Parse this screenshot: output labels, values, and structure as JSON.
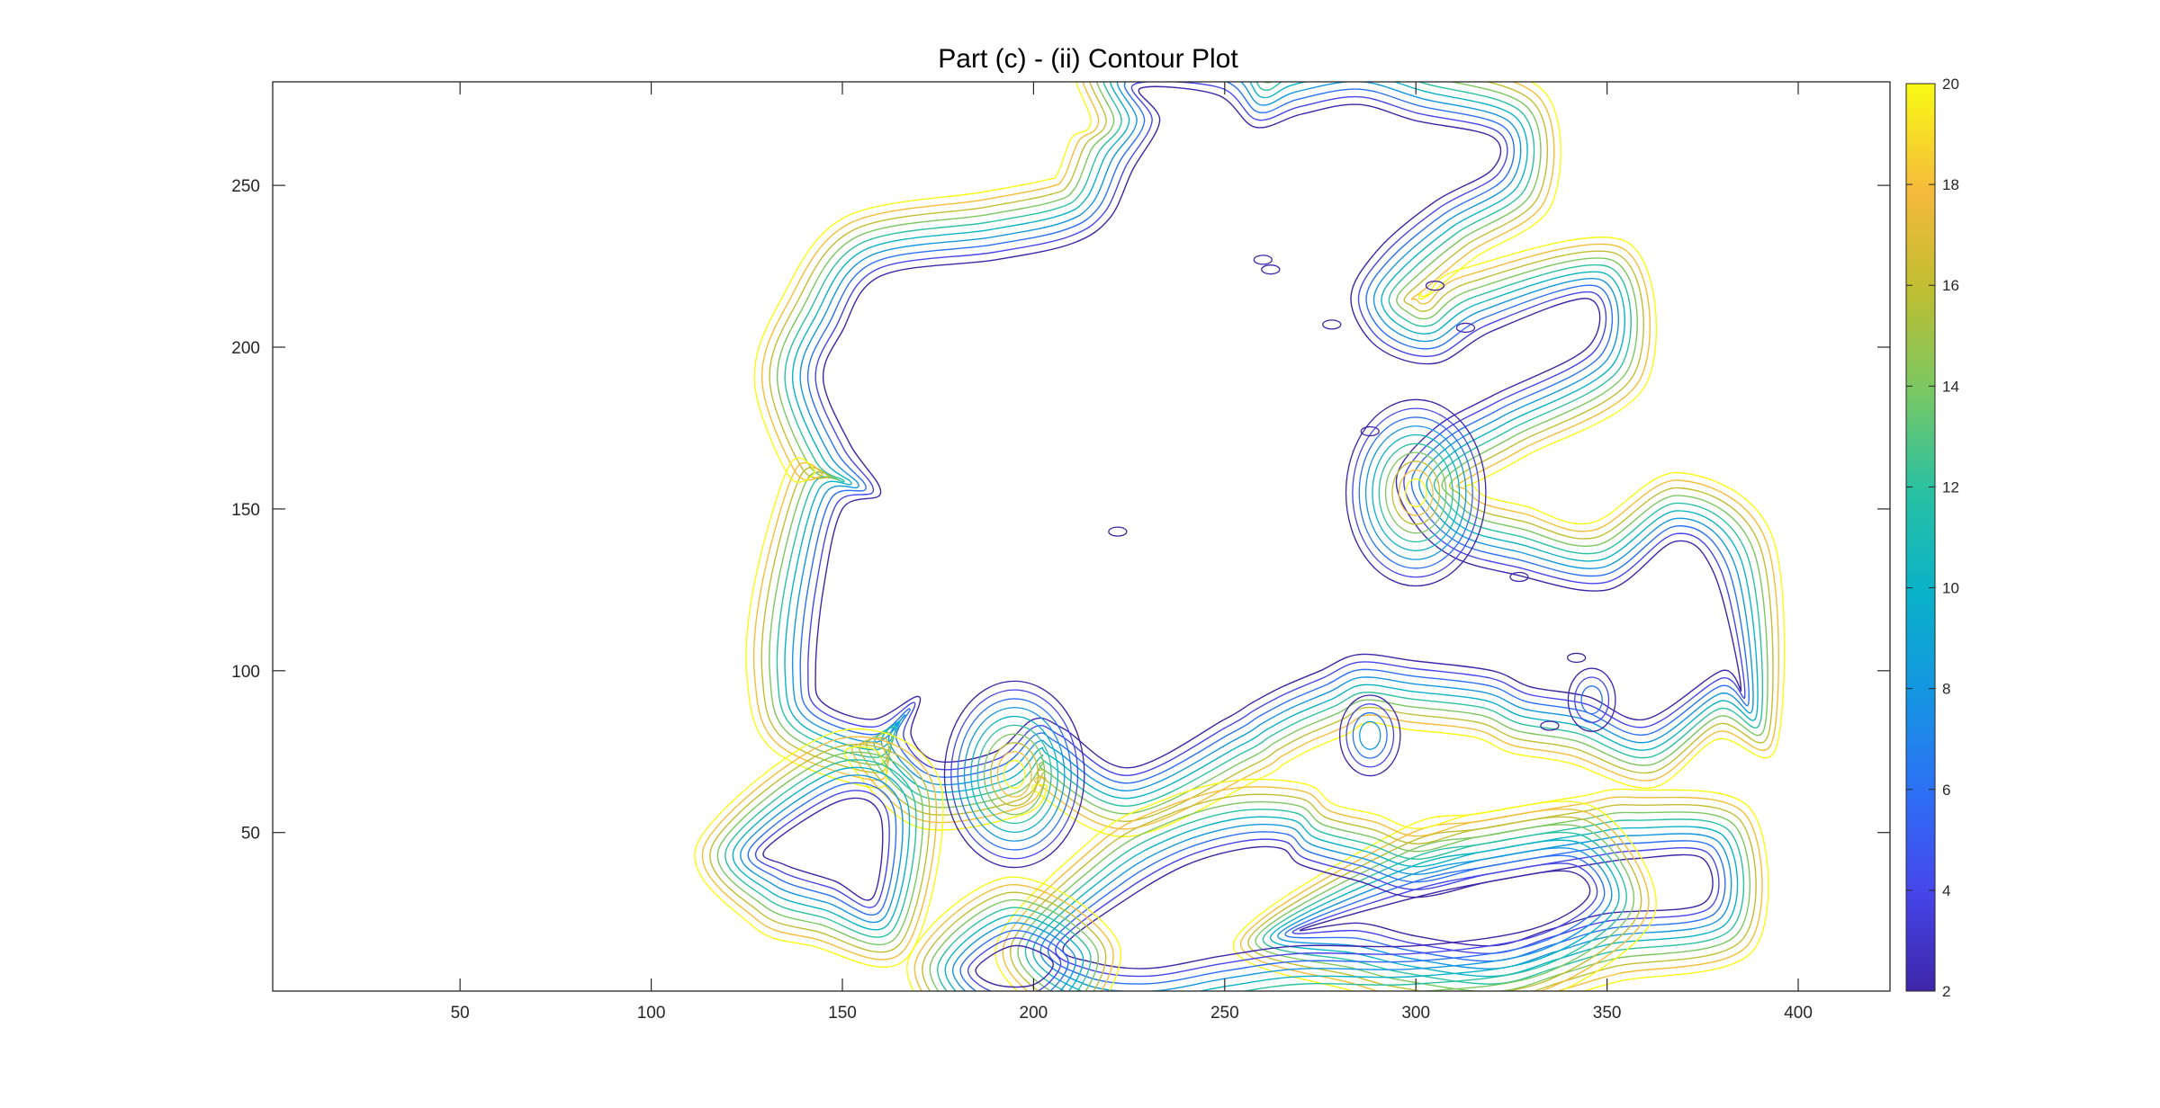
{
  "chart_data": {
    "type": "contour",
    "title": "Part (c) - (ii) Contour Plot",
    "xlabel": "",
    "ylabel": "",
    "xlim": [
      1,
      424
    ],
    "ylim": [
      1,
      282
    ],
    "xticks": [
      50,
      100,
      150,
      200,
      250,
      300,
      350,
      400
    ],
    "yticks": [
      50,
      100,
      150,
      200,
      250
    ],
    "colormap": "parula",
    "contour_levels": [
      2,
      4,
      6,
      8,
      10,
      12,
      14,
      16,
      18,
      20
    ],
    "colorbar": {
      "limits": [
        2,
        20
      ],
      "ticks": [
        2,
        4,
        6,
        8,
        10,
        12,
        14,
        16,
        18,
        20
      ],
      "placement": "right"
    },
    "grid": false,
    "regions": [
      {
        "name": "main-landmass",
        "outline": [
          [
            228,
            280
          ],
          [
            233,
            270
          ],
          [
            226,
            255
          ],
          [
            220,
            240
          ],
          [
            210,
            232
          ],
          [
            190,
            227
          ],
          [
            160,
            222
          ],
          [
            150,
            205
          ],
          [
            145,
            190
          ],
          [
            152,
            170
          ],
          [
            160,
            155
          ],
          [
            150,
            150
          ],
          [
            145,
            125
          ],
          [
            143,
            100
          ],
          [
            145,
            90
          ],
          [
            158,
            85
          ],
          [
            170,
            92
          ],
          [
            168,
            80
          ],
          [
            175,
            72
          ],
          [
            190,
            75
          ],
          [
            200,
            85
          ],
          [
            208,
            82
          ],
          [
            225,
            70
          ],
          [
            250,
            85
          ],
          [
            257,
            90
          ],
          [
            265,
            95
          ],
          [
            275,
            100
          ],
          [
            285,
            105
          ],
          [
            300,
            103
          ],
          [
            320,
            100
          ],
          [
            330,
            95
          ],
          [
            345,
            92
          ],
          [
            360,
            85
          ],
          [
            380,
            100
          ],
          [
            385,
            95
          ],
          [
            378,
            130
          ],
          [
            368,
            140
          ],
          [
            350,
            125
          ],
          [
            325,
            130
          ],
          [
            310,
            135
          ],
          [
            300,
            145
          ],
          [
            295,
            160
          ],
          [
            305,
            175
          ],
          [
            320,
            185
          ],
          [
            345,
            200
          ],
          [
            345,
            215
          ],
          [
            320,
            205
          ],
          [
            305,
            195
          ],
          [
            290,
            200
          ],
          [
            283,
            215
          ],
          [
            290,
            230
          ],
          [
            305,
            245
          ],
          [
            320,
            255
          ],
          [
            320,
            265
          ],
          [
            300,
            270
          ],
          [
            285,
            275
          ],
          [
            270,
            272
          ],
          [
            258,
            268
          ],
          [
            248,
            278
          ]
        ]
      },
      {
        "name": "southern-inlet",
        "outline": [
          [
            130,
            45
          ],
          [
            150,
            60
          ],
          [
            160,
            55
          ],
          [
            158,
            30
          ],
          [
            148,
            35
          ],
          [
            135,
            40
          ]
        ]
      },
      {
        "name": "southern-lake",
        "outline": [
          [
            270,
            20
          ],
          [
            300,
            30
          ],
          [
            320,
            35
          ],
          [
            345,
            40
          ],
          [
            358,
            42
          ],
          [
            375,
            42
          ],
          [
            375,
            28
          ],
          [
            350,
            25
          ],
          [
            335,
            20
          ],
          [
            320,
            15
          ],
          [
            300,
            18
          ],
          [
            285,
            22
          ]
        ]
      },
      {
        "name": "south-central-basin",
        "outline": [
          [
            208,
            15
          ],
          [
            225,
            30
          ],
          [
            240,
            40
          ],
          [
            255,
            45
          ],
          [
            265,
            45
          ],
          [
            270,
            40
          ],
          [
            285,
            35
          ],
          [
            300,
            30
          ],
          [
            320,
            35
          ],
          [
            340,
            38
          ],
          [
            345,
            30
          ],
          [
            330,
            20
          ],
          [
            300,
            15
          ],
          [
            270,
            15
          ],
          [
            250,
            12
          ],
          [
            230,
            8
          ],
          [
            215,
            10
          ]
        ]
      },
      {
        "name": "lower-left-basin",
        "outline": [
          [
            185,
            8
          ],
          [
            195,
            15
          ],
          [
            205,
            10
          ],
          [
            200,
            3
          ],
          [
            190,
            3
          ]
        ]
      }
    ],
    "small_islands": [
      {
        "x": 262,
        "y": 224
      },
      {
        "x": 278,
        "y": 207
      },
      {
        "x": 288,
        "y": 174
      },
      {
        "x": 305,
        "y": 219
      },
      {
        "x": 313,
        "y": 206
      },
      {
        "x": 327,
        "y": 129
      },
      {
        "x": 342,
        "y": 104
      },
      {
        "x": 222,
        "y": 143
      },
      {
        "x": 260,
        "y": 227
      },
      {
        "x": 335,
        "y": 83
      }
    ],
    "peaks": [
      {
        "x": 300,
        "y": 155,
        "max_level": 20
      },
      {
        "x": 195,
        "y": 68,
        "max_level": 20
      },
      {
        "x": 288,
        "y": 80,
        "max_level": 8
      },
      {
        "x": 346,
        "y": 91,
        "max_level": 6
      }
    ]
  }
}
